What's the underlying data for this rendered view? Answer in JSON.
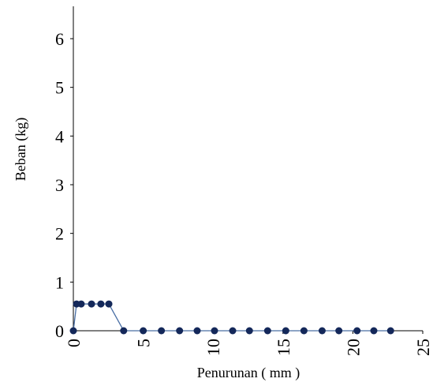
{
  "chart_data": {
    "type": "line",
    "x_label": "Penurunan ( mm )",
    "y_label": "Beban (kg)",
    "x": [
      0,
      0.23,
      0.56,
      1.3,
      1.97,
      2.54,
      3.6,
      5.0,
      6.3,
      7.6,
      8.86,
      10.1,
      11.4,
      12.6,
      13.9,
      15.2,
      16.5,
      17.8,
      19.0,
      20.3,
      21.5,
      22.7
    ],
    "values": [
      0,
      0.55,
      0.55,
      0.55,
      0.55,
      0.55,
      0,
      0,
      0,
      0,
      0,
      0,
      0,
      0,
      0,
      0,
      0,
      0,
      0,
      0,
      0,
      0
    ],
    "xlim": [
      0,
      25
    ],
    "xticks": [
      0,
      5,
      10,
      15,
      20,
      25
    ],
    "ylim": [
      0,
      6.6
    ],
    "yticks": [
      0,
      1,
      2,
      3,
      4,
      5,
      6
    ],
    "line_color": "#4a6fa5",
    "marker_color": "#14285a"
  }
}
